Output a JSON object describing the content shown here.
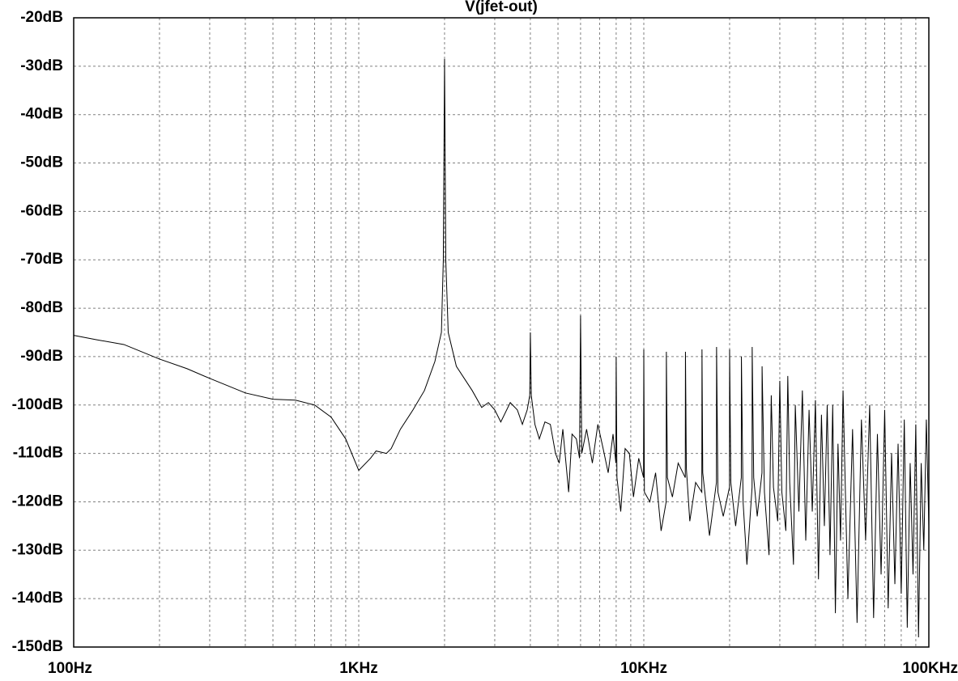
{
  "chart_data": {
    "type": "line",
    "title": "V(jfet-out)",
    "xscale": "log",
    "grid": true,
    "grid_style": "dashed",
    "color": "#000000",
    "xlim": [
      100,
      100000
    ],
    "xticks": [
      {
        "value": 100,
        "label": "100Hz"
      },
      {
        "value": 1000,
        "label": "1KHz"
      },
      {
        "value": 10000,
        "label": "10KHz"
      },
      {
        "value": 100000,
        "label": "100KHz"
      }
    ],
    "xminorticks": [
      200,
      300,
      400,
      500,
      600,
      700,
      800,
      900,
      2000,
      3000,
      4000,
      5000,
      6000,
      7000,
      8000,
      9000,
      20000,
      30000,
      40000,
      50000,
      60000,
      70000,
      80000,
      90000
    ],
    "ylim": [
      -150,
      -20
    ],
    "yticks": [
      {
        "value": -20,
        "label": "-20dB"
      },
      {
        "value": -30,
        "label": "-30dB"
      },
      {
        "value": -40,
        "label": "-40dB"
      },
      {
        "value": -50,
        "label": "-50dB"
      },
      {
        "value": -60,
        "label": "-60dB"
      },
      {
        "value": -70,
        "label": "-70dB"
      },
      {
        "value": -80,
        "label": "-80dB"
      },
      {
        "value": -90,
        "label": "-90dB"
      },
      {
        "value": -100,
        "label": "-100dB"
      },
      {
        "value": -110,
        "label": "-110dB"
      },
      {
        "value": -120,
        "label": "-120dB"
      },
      {
        "value": -130,
        "label": "-130dB"
      },
      {
        "value": -140,
        "label": "-140dB"
      },
      {
        "value": -150,
        "label": "-150dB"
      }
    ],
    "x": [
      100,
      120,
      150,
      200,
      250,
      300,
      400,
      500,
      600,
      700,
      800,
      900,
      1000,
      1100,
      1150,
      1250,
      1300,
      1400,
      1550,
      1700,
      1850,
      1950,
      1980,
      2000,
      2020,
      2060,
      2200,
      2500,
      2700,
      2850,
      3000,
      3150,
      3400,
      3600,
      3750,
      3900,
      3980,
      4000,
      4030,
      4150,
      4300,
      4500,
      4700,
      4900,
      5050,
      5200,
      5450,
      5600,
      5800,
      5950,
      6000,
      6060,
      6300,
      6600,
      6900,
      7200,
      7500,
      7800,
      7980,
      8000,
      8050,
      8300,
      8600,
      8900,
      9200,
      9600,
      9980,
      10000,
      10050,
      10500,
      11000,
      11500,
      11980,
      12000,
      12100,
      12600,
      13200,
      13980,
      14000,
      14100,
      14500,
      15200,
      15980,
      16000,
      16100,
      17000,
      17980,
      18000,
      18200,
      19000,
      19980,
      20000,
      20200,
      21000,
      21980,
      22000,
      22300,
      23000,
      23980,
      24000,
      24300,
      25000,
      25980,
      26000,
      26500,
      27500,
      28000,
      28500,
      29500,
      30000,
      30500,
      31500,
      32000,
      32500,
      33500,
      34000,
      35000,
      36000,
      37000,
      38000,
      39000,
      40000,
      41000,
      42000,
      43000,
      44000,
      45000,
      46000,
      47000,
      48000,
      49000,
      50000,
      52000,
      54000,
      56000,
      58000,
      60000,
      62000,
      64000,
      66000,
      68000,
      70000,
      72000,
      74000,
      76000,
      78000,
      80000,
      82000,
      84000,
      86000,
      88000,
      90000,
      92000,
      94000,
      96000,
      98000,
      100000
    ],
    "values": [
      -85.6,
      -86.5,
      -87.5,
      -90.5,
      -92.5,
      -94.5,
      -97.5,
      -98.8,
      -99,
      -100,
      -102.5,
      -107,
      -113.5,
      -111,
      -109.5,
      -110,
      -109,
      -105,
      -101,
      -97,
      -91,
      -85,
      -70,
      -28.5,
      -70,
      -85,
      -92,
      -97,
      -100.5,
      -99.5,
      -101,
      -103.5,
      -99.5,
      -101,
      -104,
      -101,
      -98,
      -85,
      -98,
      -104,
      -107,
      -103.5,
      -104,
      -110,
      -112,
      -105,
      -118,
      -106,
      -107,
      -111,
      -81.5,
      -110,
      -105,
      -112,
      -104,
      -109,
      -114,
      -106,
      -112,
      -90,
      -115,
      -122,
      -109,
      -110,
      -119,
      -111,
      -115,
      -88.5,
      -118,
      -120,
      -114,
      -126,
      -120,
      -89,
      -115,
      -119,
      -112,
      -115,
      -89,
      -113,
      -124,
      -116,
      -118,
      -88.5,
      -114,
      -127,
      -116,
      -88,
      -118,
      -123,
      -117,
      -88.5,
      -116,
      -125,
      -115,
      -90,
      -120,
      -133,
      -117,
      -88,
      -115,
      -123,
      -114,
      -92,
      -118,
      -131,
      -98,
      -117,
      -124,
      -95,
      -118,
      -126,
      -94,
      -116,
      -133,
      -100,
      -122,
      -97,
      -128,
      -101,
      -122,
      -99,
      -136,
      -102,
      -125,
      -100,
      -131,
      -100,
      -143,
      -108,
      -128,
      -97,
      -140,
      -105,
      -145,
      -103,
      -128,
      -100,
      -144,
      -106,
      -135,
      -101,
      -142,
      -110,
      -137,
      -108,
      -139,
      -103,
      -146,
      -112,
      -135,
      -104,
      -148,
      -112,
      -130,
      -103,
      -125
    ]
  }
}
